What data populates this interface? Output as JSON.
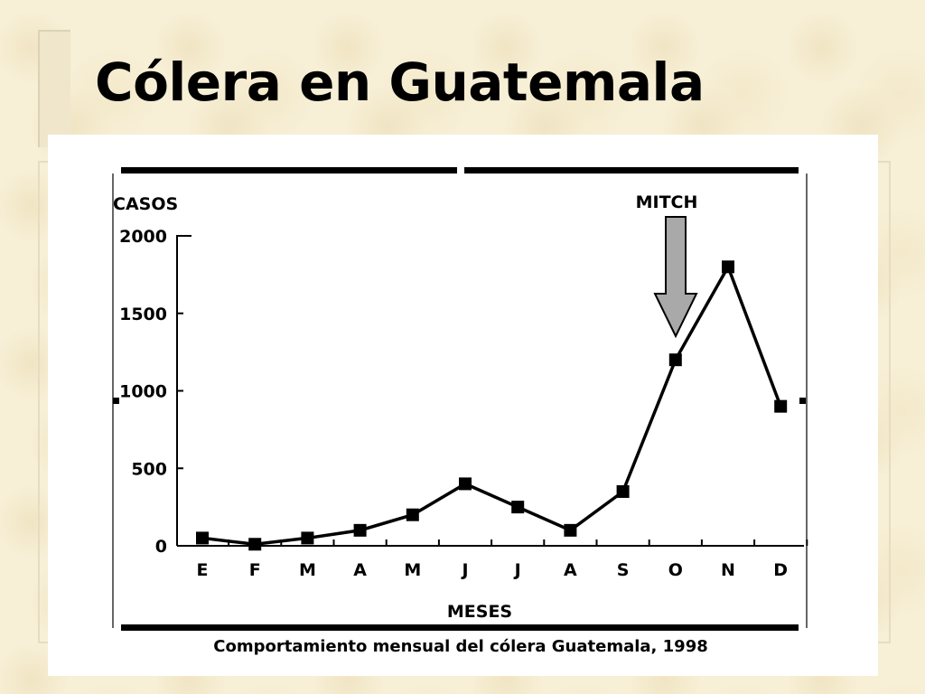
{
  "slide": {
    "title": "Cólera en Guatemala"
  },
  "chart_data": {
    "type": "line",
    "ylabel": "CASOS",
    "xlabel": "MESES",
    "caption": "Comportamiento mensual del cólera Guatemala, 1998",
    "categories": [
      "E",
      "F",
      "M",
      "A",
      "M",
      "J",
      "J",
      "A",
      "S",
      "O",
      "N",
      "D"
    ],
    "values": [
      50,
      10,
      50,
      100,
      200,
      400,
      250,
      100,
      350,
      1200,
      1800,
      900
    ],
    "ylim": [
      0,
      2000
    ],
    "yticks": [
      0,
      500,
      1000,
      1500,
      2000
    ],
    "annotation": {
      "text": "MITCH",
      "category_index": 9
    },
    "line_color": "#000000",
    "marker": "square",
    "arrow_fill": "#a9a9a9"
  }
}
